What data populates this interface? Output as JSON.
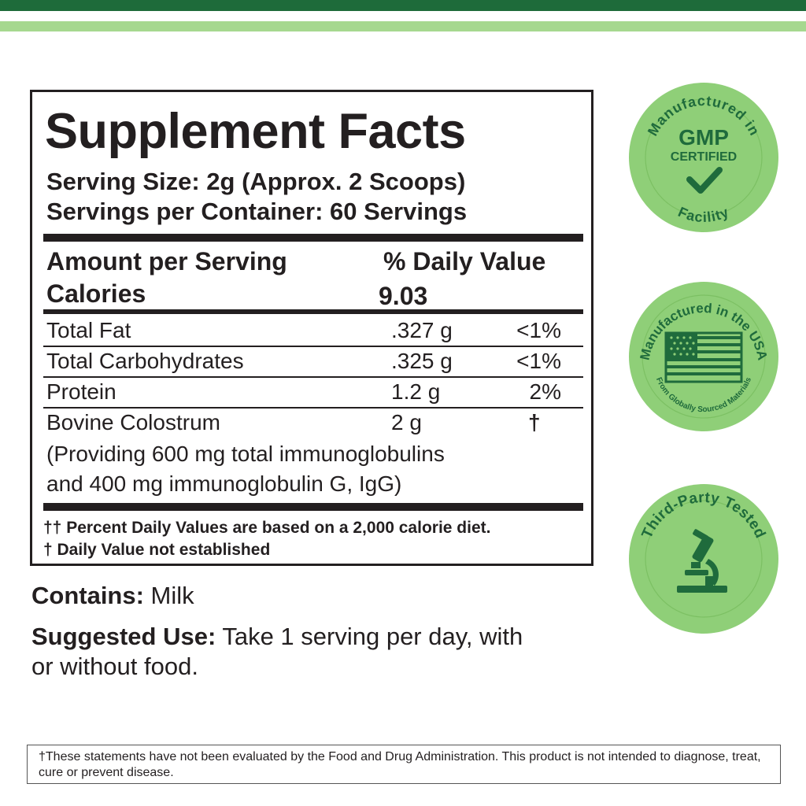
{
  "facts": {
    "title": "Supplement Facts",
    "serving_size": "Serving Size: 2g (Approx. 2 Scoops)",
    "servings_per_container": "Servings per Container: 60 Servings",
    "amount_header": "Amount per Serving",
    "dv_header": "% Daily Value",
    "calories_label": "Calories",
    "calories_value": "9.03",
    "rows": [
      {
        "name": "Total Fat",
        "amount": ".327 g",
        "dv": "<1%"
      },
      {
        "name": "Total Carbohydrates",
        "amount": ".325 g",
        "dv": "<1%"
      },
      {
        "name": "Protein",
        "amount": "1.2 g",
        "dv": "2%"
      },
      {
        "name": "Bovine Colostrum",
        "amount": "2 g",
        "dv": "†",
        "sub1": "(Providing 600 mg total immunoglobulins",
        "sub2": "and 400 mg immunoglobulin G, IgG)"
      }
    ],
    "footnote1": "†† Percent Daily Values are based on a 2,000 calorie diet.",
    "footnote2": "† Daily Value not established"
  },
  "contains": {
    "label": "Contains:",
    "text": " Milk"
  },
  "suggested_use": {
    "label": "Suggested Use:",
    "text": " Take 1 serving per day, with or without food."
  },
  "disclaimer": "†These statements have not been evaluated by the Food and Drug Administration. This product is not intended to diagnose, treat, cure or prevent disease.",
  "badges": {
    "gmp": {
      "arc_top": "Manufactured in",
      "line1": "GMP",
      "line2": "CERTIFIED",
      "arc_bottom": "Facility",
      "icon": "checkmark-icon"
    },
    "usa": {
      "arc_top": "Manufactured in the USA",
      "arc_bottom": "From Globally Sourced Materials",
      "icon": "us-flag-icon"
    },
    "tested": {
      "arc_top": "Third-Party Tested",
      "icon": "microscope-icon"
    }
  },
  "colors": {
    "dark_green": "#1e6b3a",
    "light_green": "#a6d88f",
    "badge_green": "#8fcf78",
    "badge_text": "#1f6b3c"
  }
}
